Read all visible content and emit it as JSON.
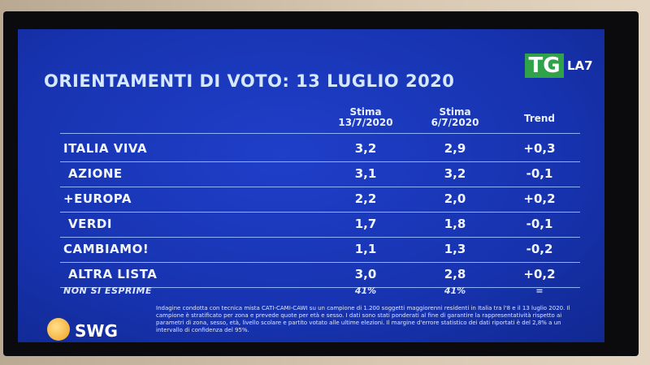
{
  "header": {
    "title": "ORIENTAMENTI DI VOTO: 13 LUGLIO 2020",
    "logo_tg": "TG",
    "logo_la7": "LA7"
  },
  "table": {
    "columns": [
      {
        "line1": "Stima",
        "line2": "13/7/2020"
      },
      {
        "line1": "Stima",
        "line2": "6/7/2020"
      },
      {
        "line1": "Trend"
      }
    ],
    "rows": [
      [
        "ITALIA VIVA",
        "3,2",
        "2,9",
        "+0,3"
      ],
      [
        "AZIONE",
        "3,1",
        "3,2",
        "-0,1"
      ],
      [
        "+EUROPA",
        "2,2",
        "2,0",
        "+0,2"
      ],
      [
        "VERDI",
        "1,7",
        "1,8",
        "-0,1"
      ],
      [
        "CAMBIAMO!",
        "1,1",
        "1,3",
        "-0,2"
      ],
      [
        "ALTRA LISTA",
        "3,0",
        "2,8",
        "+0,2"
      ],
      [
        "NON SI ESPRIME",
        "41%",
        "41%",
        "="
      ]
    ]
  },
  "footer": {
    "note": "Indagine condotta con tecnica mista CATI-CAMI-CAWI su un campione di 1.200 soggetti maggiorenni residenti in Italia tra l'8 e il 13 luglio 2020. Il campione è stratificato per zona e prevede quote per età e sesso. I dati sono stati ponderati al fine di garantire la rappresentatività rispetto ai parametri di zona, sesso, età, livello scolare e partito votato alle ultime elezioni. Il margine d'errore statistico dei dati riportati è del 2,8% a un intervallo di confidenza del 95%.",
    "brand": "SWG"
  }
}
